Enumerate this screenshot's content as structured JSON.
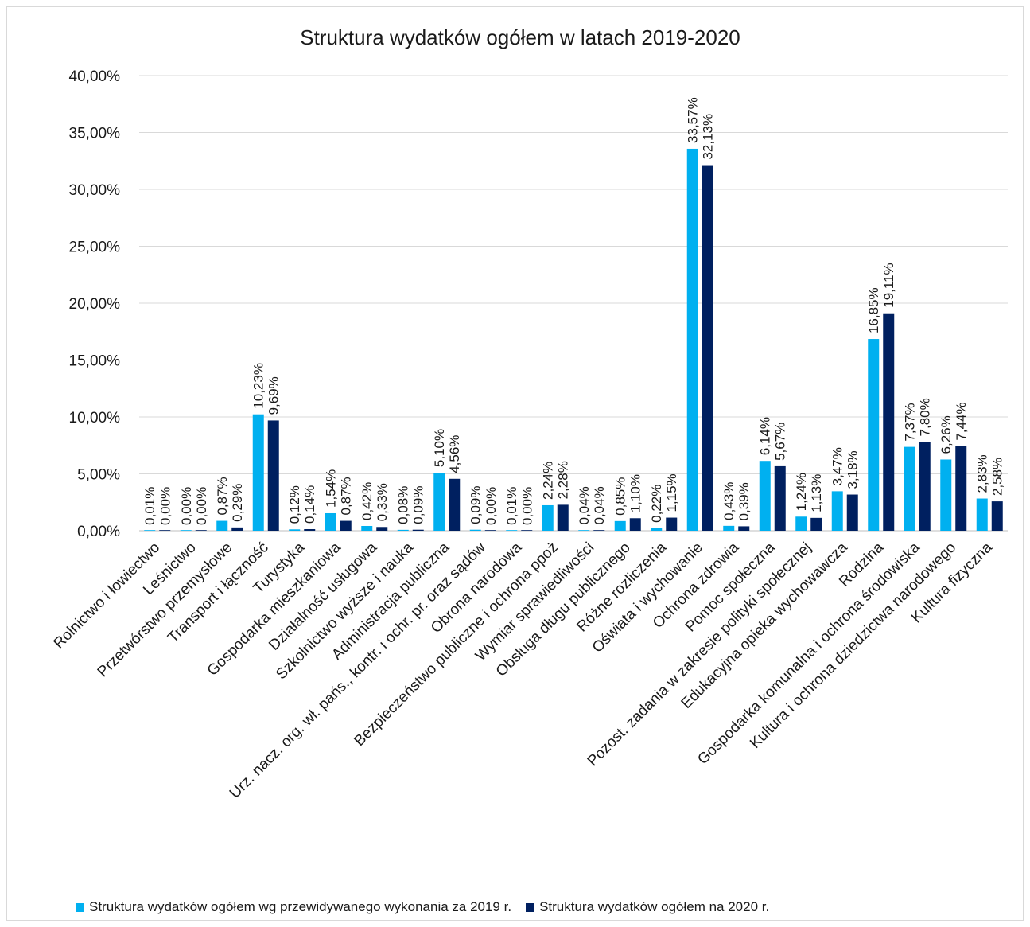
{
  "chart_data": {
    "type": "bar",
    "title": "Struktura wydatków ogółem w latach 2019-2020",
    "ylim": [
      0,
      40
    ],
    "y_ticks": [
      "0,00%",
      "5,00%",
      "10,00%",
      "15,00%",
      "20,00%",
      "25,00%",
      "30,00%",
      "35,00%",
      "40,00%"
    ],
    "grid": true,
    "legend_position": "bottom",
    "categories": [
      "Rolnictwo i łowiectwo",
      "Leśnictwo",
      "Przetwórstwo przemysłowe",
      "Transport i łączność",
      "Turystyka",
      "Gospodarka mieszkaniowa",
      "Działalność usługowa",
      "Szkolnictwo wyższe i nauka",
      "Administracja publiczna",
      "Urz. nacz. org. wł. pańs., kontr. i ochr. pr. oraz sądów",
      "Obrona narodowa",
      "Bezpieczeństwo publiczne i ochrona ppoż",
      "Wymiar sprawiedliwości",
      "Obsługa długu publicznego",
      "Różne rozliczenia",
      "Oświata i wychowanie",
      "Ochrona zdrowia",
      "Pomoc społeczna",
      "Pozost. zadania w zakresie polityki społecznej",
      "Edukacyjna opieka wychowawcza",
      "Rodzina",
      "Gospodarka komunalna i ochrona środowiska",
      "Kultura i ochrona dziedzictwa narodowego",
      "Kultura fizyczna"
    ],
    "series": [
      {
        "name": "Struktura wydatków ogółem wg przewidywanego wykonania za 2019 r.",
        "color": "#00b0f0",
        "values": [
          0.01,
          0.0,
          0.87,
          10.23,
          0.12,
          1.54,
          0.42,
          0.08,
          5.1,
          0.09,
          0.01,
          2.24,
          0.04,
          0.85,
          0.22,
          33.57,
          0.43,
          6.14,
          1.24,
          3.47,
          16.85,
          7.37,
          6.26,
          2.83
        ],
        "labels": [
          "0,01%",
          "0,00%",
          "0,87%",
          "10,23%",
          "0,12%",
          "1,54%",
          "0,42%",
          "0,08%",
          "5,10%",
          "0,09%",
          "0,01%",
          "2,24%",
          "0,04%",
          "0,85%",
          "0,22%",
          "33,57%",
          "0,43%",
          "6,14%",
          "1,24%",
          "3,47%",
          "16,85%",
          "7,37%",
          "6,26%",
          "2,83%"
        ]
      },
      {
        "name": "Struktura wydatków ogółem na 2020 r.",
        "color": "#002060",
        "values": [
          0.0,
          0.0,
          0.29,
          9.69,
          0.14,
          0.87,
          0.33,
          0.09,
          4.56,
          0.0,
          0.0,
          2.28,
          0.04,
          1.1,
          1.15,
          32.13,
          0.39,
          5.67,
          1.13,
          3.18,
          19.11,
          7.8,
          7.44,
          2.58
        ],
        "labels": [
          "0,00%",
          "0,00%",
          "0,29%",
          "9,69%",
          "0,14%",
          "0,87%",
          "0,33%",
          "0,09%",
          "4,56%",
          "0,00%",
          "0,00%",
          "2,28%",
          "0,04%",
          "1,10%",
          "1,15%",
          "32,13%",
          "0,39%",
          "5,67%",
          "1,13%",
          "3,18%",
          "19,11%",
          "7,80%",
          "7,44%",
          "2,58%"
        ]
      }
    ]
  }
}
